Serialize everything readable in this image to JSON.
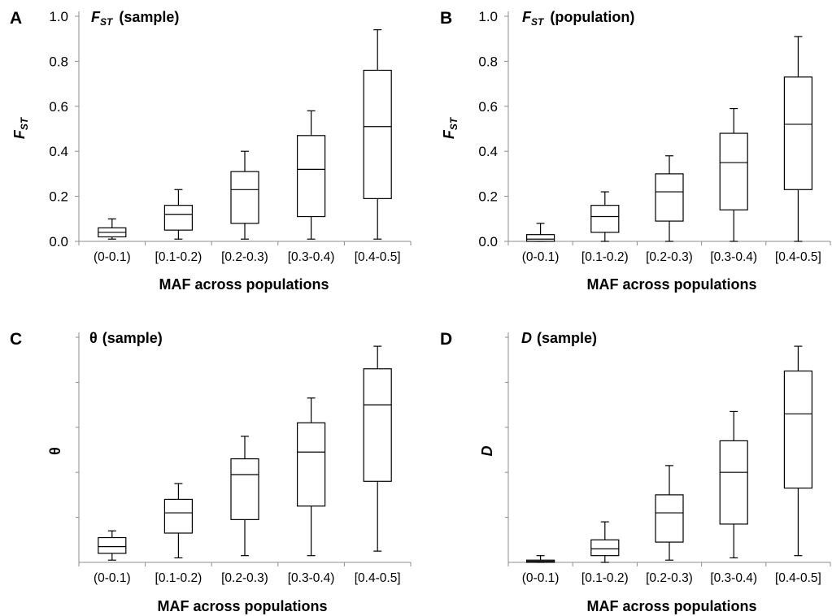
{
  "chart_data": [
    {
      "type": "box",
      "panel_letter": "A",
      "title_main": "F",
      "title_sub": "ST",
      "title_rest": "(sample)",
      "ylabel_main": "F",
      "ylabel_sub": "ST",
      "xlabel": "MAF across populations",
      "ylim": [
        0,
        1.0
      ],
      "y_ticks": [
        "0.0",
        "0.2",
        "0.4",
        "0.6",
        "0.8",
        "1.0"
      ],
      "categories": [
        "(0-0.1)",
        "[0.1-0.2)",
        "[0.2-0.3)",
        "[0.3-0.4)",
        "[0.4-0.5]"
      ],
      "boxes": [
        {
          "min": 0.01,
          "q1": 0.02,
          "median": 0.04,
          "q3": 0.06,
          "max": 0.1
        },
        {
          "min": 0.01,
          "q1": 0.05,
          "median": 0.12,
          "q3": 0.16,
          "max": 0.23
        },
        {
          "min": 0.01,
          "q1": 0.08,
          "median": 0.23,
          "q3": 0.31,
          "max": 0.4
        },
        {
          "min": 0.01,
          "q1": 0.11,
          "median": 0.32,
          "q3": 0.47,
          "max": 0.58
        },
        {
          "min": 0.01,
          "q1": 0.19,
          "median": 0.51,
          "q3": 0.76,
          "max": 0.94
        }
      ]
    },
    {
      "type": "box",
      "panel_letter": "B",
      "title_main": "F",
      "title_sub": "ST",
      "title_rest": "(population)",
      "ylabel_main": "F",
      "ylabel_sub": "ST",
      "xlabel": "MAF across populations",
      "ylim": [
        0,
        1.0
      ],
      "y_ticks": [
        "0.0",
        "0.2",
        "0.4",
        "0.6",
        "0.8",
        "1.0"
      ],
      "categories": [
        "(0-0.1)",
        "[0.1-0.2)",
        "[0.2-0.3)",
        "[0.3-0.4)",
        "[0.4-0.5]"
      ],
      "boxes": [
        {
          "min": 0.0,
          "q1": 0.0,
          "median": 0.01,
          "q3": 0.03,
          "max": 0.08
        },
        {
          "min": 0.0,
          "q1": 0.04,
          "median": 0.11,
          "q3": 0.16,
          "max": 0.22
        },
        {
          "min": 0.0,
          "q1": 0.09,
          "median": 0.22,
          "q3": 0.3,
          "max": 0.38
        },
        {
          "min": 0.0,
          "q1": 0.14,
          "median": 0.35,
          "q3": 0.48,
          "max": 0.59
        },
        {
          "min": 0.0,
          "q1": 0.23,
          "median": 0.52,
          "q3": 0.73,
          "max": 0.91
        }
      ]
    },
    {
      "type": "box",
      "panel_letter": "C",
      "title_main": "θ",
      "title_sub": "",
      "title_rest": "(sample)",
      "ylabel_main": "θ",
      "ylabel_sub": "",
      "xlabel": "MAF across populations",
      "ylim": [
        0,
        1.0
      ],
      "y_ticks": [],
      "categories": [
        "(0-0.1)",
        "[0.1-0.2)",
        "[0.2-0.3)",
        "[0.3-0.4)",
        "[0.4-0.5]"
      ],
      "boxes": [
        {
          "min": 0.01,
          "q1": 0.04,
          "median": 0.07,
          "q3": 0.11,
          "max": 0.14
        },
        {
          "min": 0.02,
          "q1": 0.13,
          "median": 0.22,
          "q3": 0.28,
          "max": 0.35
        },
        {
          "min": 0.03,
          "q1": 0.19,
          "median": 0.39,
          "q3": 0.46,
          "max": 0.56
        },
        {
          "min": 0.03,
          "q1": 0.25,
          "median": 0.49,
          "q3": 0.62,
          "max": 0.73
        },
        {
          "min": 0.05,
          "q1": 0.36,
          "median": 0.7,
          "q3": 0.86,
          "max": 0.96
        }
      ]
    },
    {
      "type": "box",
      "panel_letter": "D",
      "title_main": "D",
      "title_sub": "",
      "title_rest": "(sample)",
      "ylabel_main": "D",
      "ylabel_sub": "",
      "xlabel": "MAF across populations",
      "ylim": [
        0,
        1.0
      ],
      "y_ticks": [],
      "categories": [
        "(0-0.1)",
        "[0.1-0.2)",
        "[0.2-0.3)",
        "[0.3-0.4)",
        "[0.4-0.5]"
      ],
      "boxes": [
        {
          "min": 0.0,
          "q1": 0.0,
          "median": 0.005,
          "q3": 0.01,
          "max": 0.03
        },
        {
          "min": 0.0,
          "q1": 0.03,
          "median": 0.06,
          "q3": 0.1,
          "max": 0.18
        },
        {
          "min": 0.01,
          "q1": 0.09,
          "median": 0.22,
          "q3": 0.3,
          "max": 0.43
        },
        {
          "min": 0.02,
          "q1": 0.17,
          "median": 0.4,
          "q3": 0.54,
          "max": 0.67
        },
        {
          "min": 0.03,
          "q1": 0.33,
          "median": 0.66,
          "q3": 0.85,
          "max": 0.96
        }
      ]
    }
  ]
}
